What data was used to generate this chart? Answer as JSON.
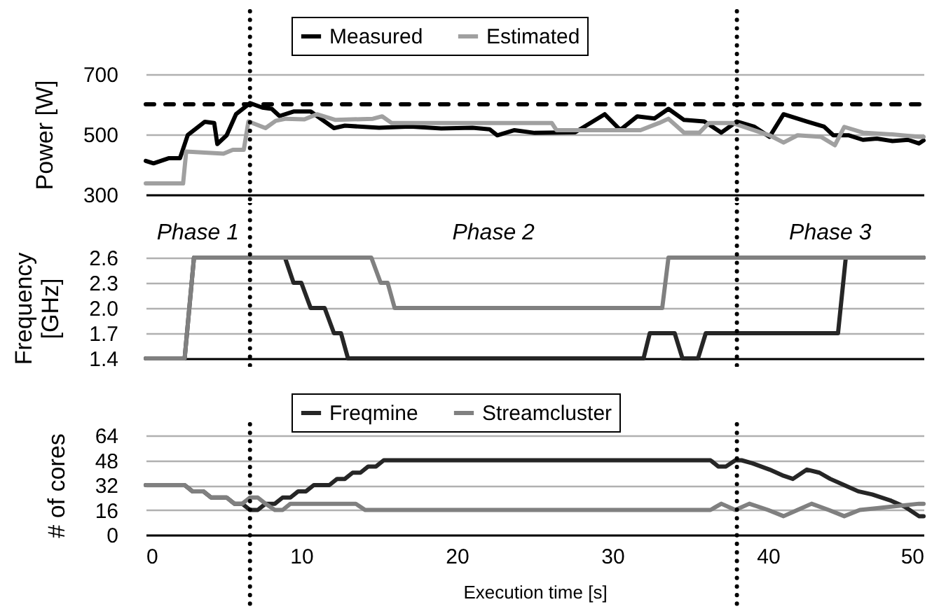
{
  "chart_data": [
    {
      "type": "line",
      "ylabel": "Power [W]",
      "xlim": [
        0,
        50
      ],
      "ylim": [
        300,
        700
      ],
      "yticks": [
        300,
        500,
        700
      ],
      "grid": "y",
      "legend": "top",
      "tick_labels": "y",
      "line_style": "solid",
      "marker": "none",
      "series": [
        {
          "name": "Measured",
          "color": "#000000",
          "x": [
            0,
            0.5,
            1.5,
            2.2,
            2.7,
            3.8,
            4.4,
            4.6,
            5.2,
            5.8,
            6.7,
            7.5,
            8.1,
            8.6,
            9.5,
            10.6,
            12.1,
            12.8,
            15,
            17,
            19,
            21,
            22.1,
            22.6,
            23.7,
            25,
            27.6,
            29.5,
            30.5,
            31.6,
            32.7,
            33.6,
            34.6,
            35.9,
            37,
            38,
            39.1,
            40.1,
            41,
            42.5,
            43.6,
            44.2,
            45.2,
            46.1,
            47,
            48,
            49,
            49.7,
            50
          ],
          "values": [
            412,
            404,
            421,
            421,
            498,
            542,
            538,
            468,
            497,
            567,
            604,
            589,
            585,
            561,
            576,
            576,
            521,
            529,
            522,
            526,
            520,
            522,
            517,
            497,
            514,
            505,
            507,
            567,
            515,
            560,
            553,
            585,
            548,
            543,
            506,
            543,
            526,
            492,
            567,
            543,
            526,
            497,
            497,
            482,
            486,
            478,
            482,
            470,
            480
          ]
        },
        {
          "name": "Estimated",
          "color": "#a0a0a0",
          "x": [
            0,
            2.4,
            2.6,
            5,
            5.6,
            6.3,
            6.6,
            7.7,
            8.35,
            9,
            10.2,
            11,
            12.2,
            14.6,
            15.2,
            15.8,
            20,
            26.1,
            26.4,
            31.8,
            33,
            33.6,
            34.6,
            35.6,
            36.2,
            37.7,
            40.1,
            41,
            41.9,
            43.4,
            44.3,
            44.9,
            46.1,
            48,
            49.7,
            50
          ],
          "values": [
            337,
            337,
            443,
            436,
            449,
            449,
            543,
            521,
            545,
            552,
            550,
            567,
            548,
            552,
            560,
            538,
            538,
            538,
            514,
            514,
            538,
            552,
            506,
            506,
            538,
            538,
            497,
            473,
            497,
            492,
            464,
            525,
            506,
            500,
            492,
            492
          ]
        }
      ],
      "ref_lines": [
        {
          "axis": "y",
          "value": 600,
          "line_style": "dashed",
          "color": "#000000"
        },
        {
          "axis": "x",
          "value": 6.7,
          "line_style": "dotted",
          "color": "#000000"
        },
        {
          "axis": "x",
          "value": 38,
          "line_style": "dotted",
          "color": "#000000"
        }
      ]
    },
    {
      "type": "line",
      "ylabel": "Frequency [GHz]",
      "xlim": [
        0,
        50
      ],
      "ylim": [
        1.4,
        2.6
      ],
      "yticks": [
        1.4,
        1.7,
        {
          "value": 2,
          "label": "2.0"
        },
        2.3,
        2.6
      ],
      "grid": "y",
      "tick_labels": "y",
      "line_style": "solid",
      "marker": "none",
      "annotations": [
        "Phase 1",
        "Phase 2",
        "Phase 3"
      ],
      "series": [
        {
          "color": "#262626",
          "x": [
            0,
            2.5,
            3.1,
            8.95,
            9.5,
            10,
            10.6,
            11.5,
            12.1,
            12.55,
            13,
            32,
            32.4,
            34,
            34.5,
            35.5,
            36,
            44.5,
            45,
            50
          ],
          "values": [
            1.4,
            1.4,
            2.6,
            2.6,
            2.3,
            2.3,
            2.0,
            2.0,
            1.7,
            1.7,
            1.4,
            1.4,
            1.7,
            1.7,
            1.4,
            1.4,
            1.7,
            1.7,
            2.6,
            2.6
          ]
        },
        {
          "color": "#808080",
          "x": [
            0,
            2.5,
            3.1,
            14.5,
            15.1,
            15.55,
            16,
            33.2,
            33.6,
            50
          ],
          "values": [
            1.4,
            1.4,
            2.6,
            2.6,
            2.3,
            2.3,
            2.0,
            2.0,
            2.6,
            2.6
          ]
        }
      ],
      "ref_lines": [
        {
          "axis": "x",
          "value": 6.7,
          "line_style": "dotted",
          "color": "#000000"
        },
        {
          "axis": "x",
          "value": 38,
          "line_style": "dotted",
          "color": "#000000"
        }
      ]
    },
    {
      "type": "line",
      "xlabel": "Execution time [s]",
      "ylabel": "# of cores",
      "xlim": [
        0,
        50
      ],
      "xticks": [
        0,
        10,
        20,
        30,
        40,
        50
      ],
      "ylim": [
        0,
        64
      ],
      "yticks": [
        0,
        16,
        32,
        48,
        64
      ],
      "grid": "y",
      "legend": "top",
      "line_style": "solid",
      "marker": "none",
      "series": [
        {
          "name": "Freqmine",
          "color": "#262626",
          "x": [
            0,
            2.5,
            3,
            3.7,
            4.2,
            5.2,
            5.7,
            6.2,
            6.7,
            7.2,
            7.7,
            8.3,
            8.8,
            9.3,
            9.8,
            10.3,
            10.8,
            11.8,
            12.3,
            12.8,
            13.3,
            13.8,
            14.3,
            14.8,
            15.3,
            36.3,
            36.8,
            37.3,
            37.9,
            38.3,
            39,
            40.1,
            41,
            41.6,
            42.5,
            43.3,
            44,
            44.9,
            45.8,
            46.7,
            47.9,
            48.8,
            49.7,
            50
          ],
          "values": [
            32,
            32,
            28,
            28,
            24,
            24,
            20,
            20,
            16,
            16,
            20,
            20,
            24,
            24,
            28,
            28,
            32,
            32,
            36,
            36,
            40,
            40,
            44,
            44,
            48,
            48,
            44,
            44,
            48,
            48,
            46,
            42,
            38,
            36,
            42,
            40,
            36,
            32,
            28,
            26,
            22,
            18,
            12,
            12
          ]
        },
        {
          "name": "Streamcluster",
          "color": "#808080",
          "x": [
            0,
            2.5,
            3,
            3.7,
            4.2,
            5.2,
            5.7,
            6.2,
            6.7,
            7.2,
            7.7,
            8.3,
            8.8,
            9.3,
            13.5,
            14.1,
            36.3,
            37,
            37.9,
            38.8,
            40,
            41,
            41.9,
            42.8,
            43.9,
            44.9,
            45.9,
            46.9,
            49.7,
            50
          ],
          "values": [
            32,
            32,
            28,
            28,
            24,
            24,
            20,
            20,
            24,
            24,
            20,
            16,
            16,
            20,
            20,
            16,
            16,
            20,
            16,
            20,
            16,
            12,
            16,
            20,
            16,
            12,
            16,
            17,
            20,
            20
          ]
        }
      ],
      "ref_lines": [
        {
          "axis": "x",
          "value": 6.7,
          "line_style": "dotted",
          "color": "#000000"
        },
        {
          "axis": "x",
          "value": 38,
          "line_style": "dotted",
          "color": "#000000"
        }
      ]
    }
  ]
}
